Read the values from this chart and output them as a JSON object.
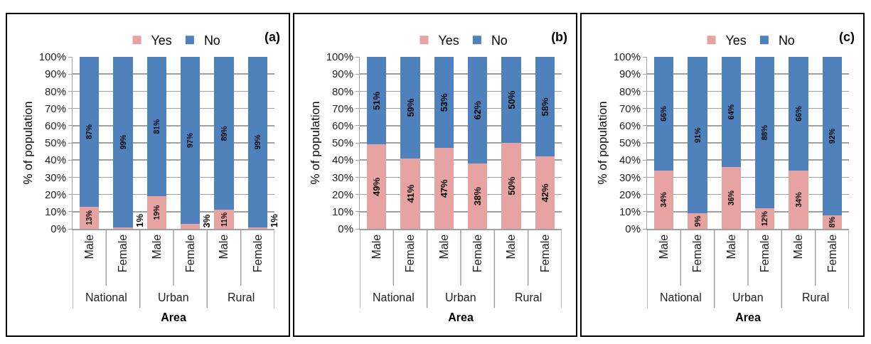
{
  "chart_data": [
    {
      "type": "bar",
      "title": "(a)",
      "xlabel": "Area",
      "ylabel": "% of population",
      "stacked": true,
      "grid": "y",
      "legend": "top",
      "data_labels": true,
      "categories": [
        "Male",
        "Female",
        "Male",
        "Female",
        "Male",
        "Female"
      ],
      "annotations": [
        "National",
        "Urban",
        "Rural"
      ],
      "ylim": [
        0,
        100
      ],
      "yticks": [
        {
          "value": 0,
          "label": "0%"
        },
        {
          "value": 10,
          "label": "10%"
        },
        {
          "value": 20,
          "label": "20%"
        },
        {
          "value": 30,
          "label": "30%"
        },
        {
          "value": 40,
          "label": "40%"
        },
        {
          "value": 50,
          "label": "50%"
        },
        {
          "value": 60,
          "label": "60%"
        },
        {
          "value": 70,
          "label": "70%"
        },
        {
          "value": 80,
          "label": "80%"
        },
        {
          "value": 90,
          "label": "90%"
        },
        {
          "value": 100,
          "label": "100%"
        }
      ],
      "series": [
        {
          "name": "Yes",
          "color": "#e6a3a1",
          "values": [
            13,
            1,
            19,
            3,
            11,
            1
          ],
          "value_labels": [
            "13%",
            "1%",
            "19%",
            "3%",
            "11%",
            "1%"
          ]
        },
        {
          "name": "No",
          "color": "#4f81bd",
          "values": [
            87,
            99,
            81,
            97,
            89,
            99
          ],
          "value_labels": [
            "87%",
            "99%",
            "81%",
            "97%",
            "89%",
            "99%"
          ]
        }
      ]
    },
    {
      "type": "bar",
      "title": "(b)",
      "xlabel": "Area",
      "ylabel": "% of population",
      "stacked": true,
      "grid": "y",
      "legend": "top",
      "data_labels": true,
      "categories": [
        "Male",
        "Female",
        "Male",
        "Female",
        "Male",
        "Female"
      ],
      "annotations": [
        "National",
        "Urban",
        "Rural"
      ],
      "ylim": [
        0,
        100
      ],
      "yticks": [
        {
          "value": 0,
          "label": "0%"
        },
        {
          "value": 10,
          "label": "10%"
        },
        {
          "value": 20,
          "label": "20%"
        },
        {
          "value": 30,
          "label": "30%"
        },
        {
          "value": 40,
          "label": "40%"
        },
        {
          "value": 50,
          "label": "50%"
        },
        {
          "value": 60,
          "label": "60%"
        },
        {
          "value": 70,
          "label": "70%"
        },
        {
          "value": 80,
          "label": "80%"
        },
        {
          "value": 90,
          "label": "90%"
        },
        {
          "value": 100,
          "label": "100%"
        }
      ],
      "series": [
        {
          "name": "Yes",
          "color": "#e6a3a1",
          "values": [
            49,
            41,
            47,
            38,
            50,
            42
          ],
          "value_labels": [
            "49%",
            "41%",
            "47%",
            "38%",
            "50%",
            "42%"
          ]
        },
        {
          "name": "No",
          "color": "#4f81bd",
          "values": [
            51,
            59,
            53,
            62,
            50,
            58
          ],
          "value_labels": [
            "51%",
            "59%",
            "53%",
            "62%",
            "50%",
            "58%"
          ]
        }
      ]
    },
    {
      "type": "bar",
      "title": "(c)",
      "xlabel": "Area",
      "ylabel": "% of population",
      "stacked": true,
      "grid": "y",
      "legend": "top",
      "data_labels": true,
      "categories": [
        "Male",
        "Female",
        "Male",
        "Female",
        "Male",
        "Female"
      ],
      "annotations": [
        "National",
        "Urban",
        "Rural"
      ],
      "ylim": [
        0,
        100
      ],
      "yticks": [
        {
          "value": 0,
          "label": "0%"
        },
        {
          "value": 10,
          "label": "10%"
        },
        {
          "value": 20,
          "label": "20%"
        },
        {
          "value": 30,
          "label": "30%"
        },
        {
          "value": 40,
          "label": "40%"
        },
        {
          "value": 50,
          "label": "50%"
        },
        {
          "value": 60,
          "label": "60%"
        },
        {
          "value": 70,
          "label": "70%"
        },
        {
          "value": 80,
          "label": "80%"
        },
        {
          "value": 90,
          "label": "90%"
        },
        {
          "value": 100,
          "label": "100%"
        }
      ],
      "series": [
        {
          "name": "Yes",
          "color": "#e6a3a1",
          "values": [
            34,
            9,
            36,
            12,
            34,
            8
          ],
          "value_labels": [
            "34%",
            "9%",
            "36%",
            "12%",
            "34%",
            "8%"
          ]
        },
        {
          "name": "No",
          "color": "#4f81bd",
          "values": [
            66,
            91,
            64,
            88,
            66,
            92
          ],
          "value_labels": [
            "66%",
            "91%",
            "64%",
            "88%",
            "66%",
            "92%"
          ]
        }
      ]
    }
  ]
}
